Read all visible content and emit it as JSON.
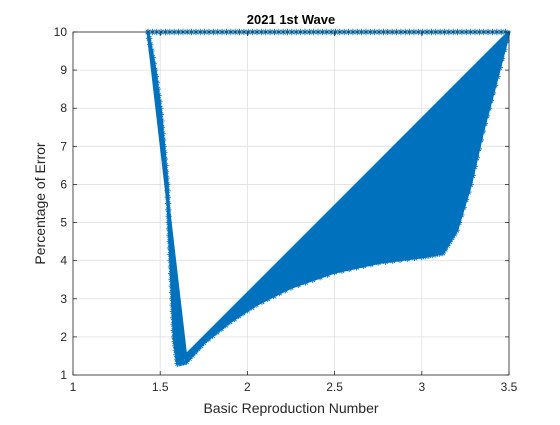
{
  "chart_data": {
    "type": "scatter",
    "title": "2021 1st Wave",
    "xlabel": "Basic Reproduction Number",
    "ylabel": "Percentage of Error",
    "xlim": [
      1,
      3.5
    ],
    "ylim": [
      1,
      10
    ],
    "xticks": [
      1,
      1.5,
      2,
      2.5,
      3,
      3.5
    ],
    "xtick_labels": [
      "1",
      "1.5",
      "2",
      "2.5",
      "3",
      "3.5"
    ],
    "yticks": [
      1,
      2,
      3,
      4,
      5,
      6,
      7,
      8,
      9,
      10
    ],
    "ytick_labels": [
      "1",
      "2",
      "3",
      "4",
      "5",
      "6",
      "7",
      "8",
      "9",
      "10"
    ],
    "grid": true,
    "marker": "asterisk",
    "series_color": "#0072BD",
    "region": {
      "description_points": "boundary of the dense filled point cloud, in data units",
      "left_edge": [
        [
          1.43,
          10
        ],
        [
          1.47,
          9
        ],
        [
          1.5,
          8
        ],
        [
          1.52,
          7
        ],
        [
          1.54,
          6
        ],
        [
          1.55,
          5
        ],
        [
          1.56,
          4
        ],
        [
          1.57,
          3
        ],
        [
          1.58,
          2
        ],
        [
          1.6,
          1.3
        ]
      ],
      "bottom_edge": [
        [
          1.6,
          1.3
        ],
        [
          1.65,
          1.35
        ],
        [
          1.75,
          1.85
        ],
        [
          1.9,
          2.4
        ],
        [
          2.05,
          2.85
        ],
        [
          2.25,
          3.3
        ],
        [
          2.5,
          3.7
        ],
        [
          2.75,
          3.95
        ],
        [
          3.0,
          4.1
        ],
        [
          3.12,
          4.2
        ]
      ],
      "right_edge": [
        [
          3.12,
          4.2
        ],
        [
          3.2,
          4.8
        ],
        [
          3.28,
          6.0
        ],
        [
          3.35,
          7.4
        ],
        [
          3.42,
          8.6
        ],
        [
          3.5,
          10
        ]
      ]
    }
  }
}
